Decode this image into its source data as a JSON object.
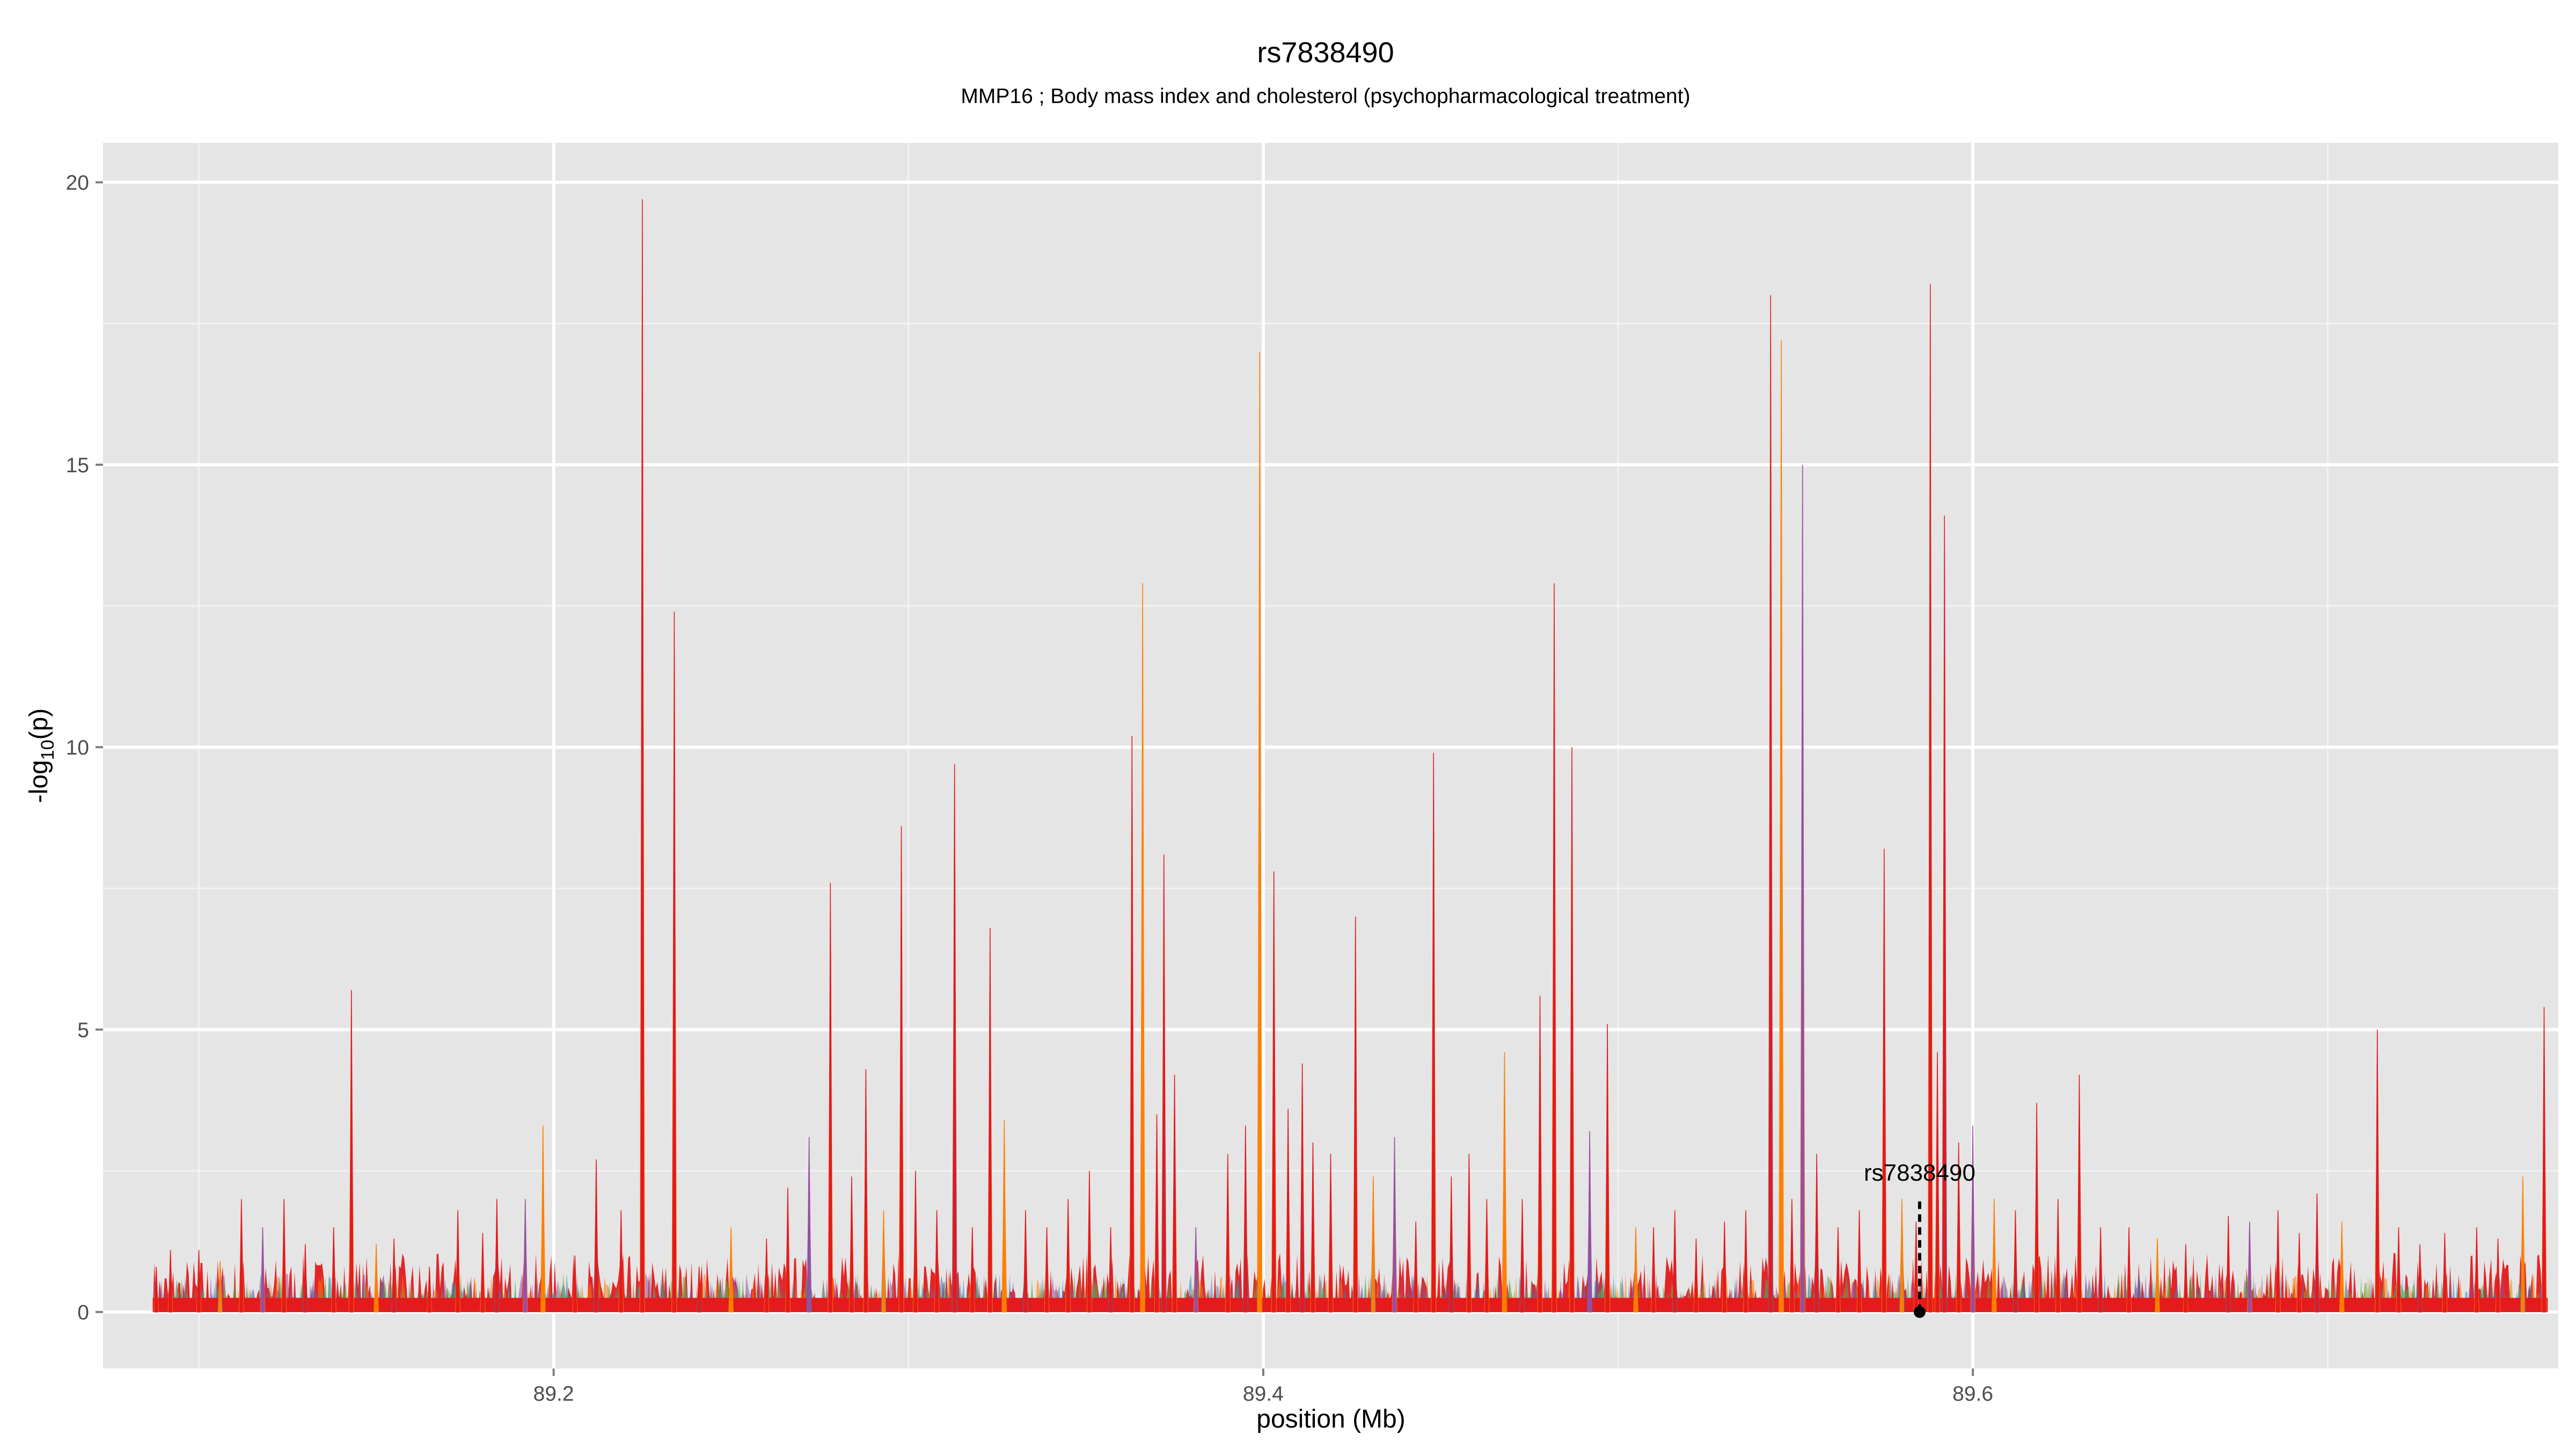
{
  "chart_data": {
    "type": "area",
    "title": "rs7838490",
    "subtitle": "MMP16 ; Body mass index and cholesterol (psychopharmacological treatment)",
    "xlabel": "position (Mb)",
    "ylabel_base": "-log",
    "ylabel_sub": "10",
    "ylabel_tail": "(p)",
    "xlim": [
      89.073,
      89.765
    ],
    "ylim": [
      -1.0,
      20.7
    ],
    "x_ticks": [
      {
        "value": 89.2,
        "label": "89.2"
      },
      {
        "value": 89.4,
        "label": "89.4"
      },
      {
        "value": 89.6,
        "label": "89.6"
      }
    ],
    "x_minor": [
      89.1,
      89.3,
      89.5,
      89.7
    ],
    "y_ticks": [
      {
        "value": 0,
        "label": "0"
      },
      {
        "value": 5,
        "label": "5"
      },
      {
        "value": 10,
        "label": "10"
      },
      {
        "value": 15,
        "label": "15"
      },
      {
        "value": 20,
        "label": "20"
      }
    ],
    "y_minor": [
      2.5,
      7.5,
      12.5,
      17.5
    ],
    "grid": true,
    "x_range_data": [
      89.087,
      89.762
    ],
    "series_colors": [
      "#e41a1c",
      "#ff7f00",
      "#377eb8",
      "#984ea3",
      "#4daf4a"
    ],
    "peaks": [
      {
        "x": 89.088,
        "y": 0.8
      },
      {
        "x": 89.092,
        "y": 1.1
      },
      {
        "x": 89.1,
        "y": 1.1
      },
      {
        "x": 89.106,
        "y": 0.9
      },
      {
        "x": 89.112,
        "y": 2.0
      },
      {
        "x": 89.118,
        "y": 1.5
      },
      {
        "x": 89.124,
        "y": 2.0
      },
      {
        "x": 89.13,
        "y": 1.2
      },
      {
        "x": 89.138,
        "y": 1.5
      },
      {
        "x": 89.143,
        "y": 5.7
      },
      {
        "x": 89.15,
        "y": 1.2
      },
      {
        "x": 89.155,
        "y": 1.3
      },
      {
        "x": 89.165,
        "y": 0.8
      },
      {
        "x": 89.173,
        "y": 1.8
      },
      {
        "x": 89.18,
        "y": 1.4
      },
      {
        "x": 89.184,
        "y": 2.0
      },
      {
        "x": 89.192,
        "y": 2.0
      },
      {
        "x": 89.197,
        "y": 3.3
      },
      {
        "x": 89.206,
        "y": 1.0
      },
      {
        "x": 89.212,
        "y": 2.7
      },
      {
        "x": 89.219,
        "y": 1.8
      },
      {
        "x": 89.225,
        "y": 19.7
      },
      {
        "x": 89.234,
        "y": 12.4
      },
      {
        "x": 89.241,
        "y": 0.8
      },
      {
        "x": 89.25,
        "y": 1.5
      },
      {
        "x": 89.26,
        "y": 1.3
      },
      {
        "x": 89.266,
        "y": 2.2
      },
      {
        "x": 89.272,
        "y": 3.1
      },
      {
        "x": 89.278,
        "y": 7.6
      },
      {
        "x": 89.284,
        "y": 2.4
      },
      {
        "x": 89.288,
        "y": 4.3
      },
      {
        "x": 89.293,
        "y": 1.8
      },
      {
        "x": 89.298,
        "y": 8.6
      },
      {
        "x": 89.302,
        "y": 2.5
      },
      {
        "x": 89.308,
        "y": 1.8
      },
      {
        "x": 89.313,
        "y": 9.7
      },
      {
        "x": 89.318,
        "y": 1.5
      },
      {
        "x": 89.323,
        "y": 6.8
      },
      {
        "x": 89.327,
        "y": 3.4
      },
      {
        "x": 89.333,
        "y": 1.8
      },
      {
        "x": 89.339,
        "y": 1.5
      },
      {
        "x": 89.345,
        "y": 2.0
      },
      {
        "x": 89.351,
        "y": 2.5
      },
      {
        "x": 89.357,
        "y": 1.5
      },
      {
        "x": 89.363,
        "y": 10.2
      },
      {
        "x": 89.366,
        "y": 12.9
      },
      {
        "x": 89.37,
        "y": 3.5
      },
      {
        "x": 89.372,
        "y": 8.1
      },
      {
        "x": 89.375,
        "y": 4.2
      },
      {
        "x": 89.381,
        "y": 1.5
      },
      {
        "x": 89.39,
        "y": 2.8
      },
      {
        "x": 89.395,
        "y": 3.3
      },
      {
        "x": 89.399,
        "y": 17.0
      },
      {
        "x": 89.403,
        "y": 7.8
      },
      {
        "x": 89.407,
        "y": 3.6
      },
      {
        "x": 89.411,
        "y": 4.4
      },
      {
        "x": 89.414,
        "y": 3.0
      },
      {
        "x": 89.419,
        "y": 2.8
      },
      {
        "x": 89.426,
        "y": 7.0
      },
      {
        "x": 89.431,
        "y": 2.4
      },
      {
        "x": 89.437,
        "y": 3.1
      },
      {
        "x": 89.443,
        "y": 1.6
      },
      {
        "x": 89.448,
        "y": 9.9
      },
      {
        "x": 89.453,
        "y": 2.4
      },
      {
        "x": 89.458,
        "y": 2.8
      },
      {
        "x": 89.463,
        "y": 2.0
      },
      {
        "x": 89.468,
        "y": 4.6
      },
      {
        "x": 89.473,
        "y": 2.0
      },
      {
        "x": 89.478,
        "y": 5.6
      },
      {
        "x": 89.482,
        "y": 12.9
      },
      {
        "x": 89.487,
        "y": 10.0
      },
      {
        "x": 89.492,
        "y": 3.2
      },
      {
        "x": 89.497,
        "y": 5.1
      },
      {
        "x": 89.505,
        "y": 1.5
      },
      {
        "x": 89.51,
        "y": 1.5
      },
      {
        "x": 89.516,
        "y": 1.8
      },
      {
        "x": 89.522,
        "y": 1.3
      },
      {
        "x": 89.53,
        "y": 1.6
      },
      {
        "x": 89.536,
        "y": 1.8
      },
      {
        "x": 89.543,
        "y": 18.0
      },
      {
        "x": 89.546,
        "y": 17.2
      },
      {
        "x": 89.549,
        "y": 2.0
      },
      {
        "x": 89.552,
        "y": 15.0
      },
      {
        "x": 89.556,
        "y": 2.8
      },
      {
        "x": 89.562,
        "y": 1.5
      },
      {
        "x": 89.568,
        "y": 1.8
      },
      {
        "x": 89.575,
        "y": 8.2
      },
      {
        "x": 89.58,
        "y": 2.0
      },
      {
        "x": 89.584,
        "y": 1.6
      },
      {
        "x": 89.588,
        "y": 18.2
      },
      {
        "x": 89.59,
        "y": 4.6
      },
      {
        "x": 89.592,
        "y": 14.1
      },
      {
        "x": 89.596,
        "y": 3.0
      },
      {
        "x": 89.6,
        "y": 3.3
      },
      {
        "x": 89.606,
        "y": 2.0
      },
      {
        "x": 89.612,
        "y": 1.8
      },
      {
        "x": 89.618,
        "y": 3.7
      },
      {
        "x": 89.624,
        "y": 2.0
      },
      {
        "x": 89.63,
        "y": 4.2
      },
      {
        "x": 89.636,
        "y": 1.5
      },
      {
        "x": 89.644,
        "y": 1.5
      },
      {
        "x": 89.652,
        "y": 1.3
      },
      {
        "x": 89.66,
        "y": 1.2
      },
      {
        "x": 89.672,
        "y": 1.7
      },
      {
        "x": 89.678,
        "y": 1.6
      },
      {
        "x": 89.686,
        "y": 1.8
      },
      {
        "x": 89.692,
        "y": 1.4
      },
      {
        "x": 89.697,
        "y": 2.1
      },
      {
        "x": 89.704,
        "y": 1.6
      },
      {
        "x": 89.714,
        "y": 5.0
      },
      {
        "x": 89.72,
        "y": 1.5
      },
      {
        "x": 89.726,
        "y": 1.2
      },
      {
        "x": 89.733,
        "y": 1.4
      },
      {
        "x": 89.742,
        "y": 1.5
      },
      {
        "x": 89.748,
        "y": 1.3
      },
      {
        "x": 89.755,
        "y": 2.4
      },
      {
        "x": 89.761,
        "y": 5.4
      }
    ],
    "annotation": {
      "label": "rs7838490",
      "x": 89.585,
      "y": 0,
      "line_top": 2.0
    }
  }
}
